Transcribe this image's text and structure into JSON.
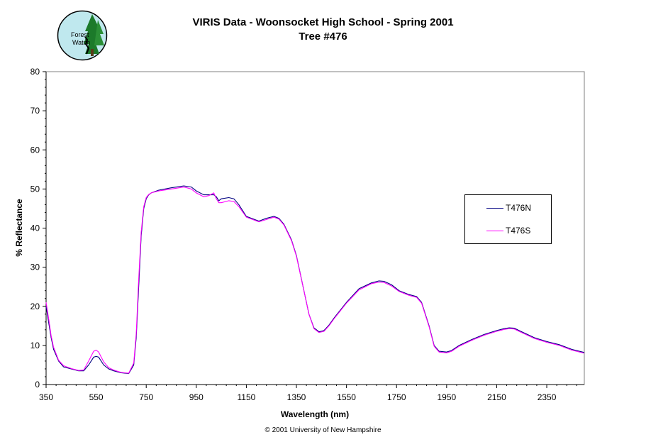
{
  "header": {
    "title_line1": "VIRIS Data -  Woonsocket High School - Spring 2001",
    "title_line2": "Tree #476"
  },
  "logo": {
    "text_line1": "Forest",
    "text_line2": "Watch",
    "icon": "forest-watch-logo-icon"
  },
  "footer": {
    "copyright": "© 2001 University of New Hampshire"
  },
  "colors": {
    "T476N": "#000080",
    "T476S": "#ff00ff",
    "axis": "#000000"
  },
  "chart_data": {
    "type": "line",
    "title": "VIRIS Data -  Woonsocket High School - Spring 2001\nTree #476",
    "xlabel": "Wavelength (nm)",
    "ylabel": "% Reflectance",
    "xlim": [
      350,
      2500
    ],
    "ylim": [
      0,
      80
    ],
    "xticks": [
      350,
      550,
      750,
      950,
      1150,
      1350,
      1550,
      1750,
      1950,
      2150,
      2350
    ],
    "yticks": [
      0,
      10,
      20,
      30,
      40,
      50,
      60,
      70,
      80
    ],
    "grid": false,
    "legend_position": "right",
    "series": [
      {
        "name": "T476N",
        "x": [
          350,
          360,
          370,
          380,
          400,
          420,
          450,
          480,
          500,
          520,
          540,
          550,
          560,
          580,
          600,
          620,
          650,
          680,
          700,
          710,
          720,
          730,
          740,
          750,
          760,
          770,
          800,
          850,
          900,
          930,
          950,
          980,
          1000,
          1020,
          1030,
          1040,
          1050,
          1080,
          1100,
          1120,
          1150,
          1200,
          1230,
          1260,
          1280,
          1300,
          1330,
          1350,
          1380,
          1400,
          1420,
          1440,
          1460,
          1480,
          1500,
          1550,
          1600,
          1650,
          1680,
          1700,
          1730,
          1760,
          1800,
          1830,
          1850,
          1880,
          1900,
          1920,
          1950,
          1970,
          2000,
          2050,
          2100,
          2150,
          2180,
          2200,
          2220,
          2250,
          2300,
          2350,
          2400,
          2450,
          2500
        ],
        "y": [
          20,
          16,
          12,
          9,
          6,
          4.5,
          4,
          3.5,
          3.5,
          5,
          7,
          7.2,
          7,
          5,
          4,
          3.5,
          3,
          2.8,
          5,
          12,
          25,
          38,
          45,
          47.5,
          48.5,
          49,
          49.7,
          50.3,
          50.8,
          50.5,
          49.5,
          48.5,
          48.5,
          48.5,
          48,
          47,
          47.5,
          47.8,
          47.5,
          46,
          43,
          41.8,
          42.5,
          43,
          42.5,
          41,
          37,
          33,
          24,
          18,
          14.5,
          13.5,
          13.8,
          15.2,
          17,
          21,
          24.5,
          26,
          26.5,
          26.4,
          25.5,
          24,
          23,
          22.5,
          21,
          15,
          10,
          8.5,
          8.3,
          8.7,
          10,
          11.5,
          12.8,
          13.8,
          14.3,
          14.5,
          14.4,
          13.5,
          12,
          11,
          10.2,
          9,
          8.2
        ]
      },
      {
        "name": "T476S",
        "x": [
          350,
          360,
          370,
          380,
          400,
          420,
          450,
          480,
          500,
          520,
          540,
          550,
          560,
          580,
          600,
          620,
          650,
          680,
          700,
          710,
          720,
          730,
          740,
          750,
          760,
          770,
          800,
          850,
          900,
          930,
          950,
          980,
          1000,
          1020,
          1030,
          1040,
          1050,
          1080,
          1100,
          1120,
          1150,
          1200,
          1230,
          1260,
          1280,
          1300,
          1330,
          1350,
          1380,
          1400,
          1420,
          1440,
          1460,
          1480,
          1500,
          1550,
          1600,
          1650,
          1680,
          1700,
          1730,
          1760,
          1800,
          1830,
          1850,
          1880,
          1900,
          1920,
          1950,
          1970,
          2000,
          2050,
          2100,
          2150,
          2180,
          2200,
          2220,
          2250,
          2300,
          2350,
          2400,
          2450,
          2500
        ],
        "y": [
          21,
          17,
          12.5,
          9.5,
          6.2,
          4.8,
          4.1,
          3.6,
          3.7,
          6,
          8.5,
          8.8,
          8.3,
          5.8,
          4.3,
          3.7,
          3.1,
          2.9,
          5.5,
          13,
          27,
          39,
          45.5,
          47.8,
          48.6,
          49,
          49.5,
          50,
          50.5,
          50,
          49,
          48,
          48.3,
          49,
          47.5,
          46.5,
          46.5,
          47,
          46.8,
          45.5,
          42.8,
          41.6,
          42.2,
          42.8,
          42.3,
          40.8,
          36.8,
          32.8,
          24,
          18,
          14.3,
          13.3,
          13.6,
          15,
          16.8,
          20.8,
          24.2,
          25.8,
          26.2,
          26.1,
          25.2,
          23.8,
          22.8,
          22.3,
          20.8,
          14.8,
          9.8,
          8.3,
          8.1,
          8.5,
          9.8,
          11.3,
          12.6,
          13.6,
          14.1,
          14.3,
          14.2,
          13.3,
          11.8,
          10.8,
          10,
          8.8,
          8
        ]
      }
    ]
  }
}
